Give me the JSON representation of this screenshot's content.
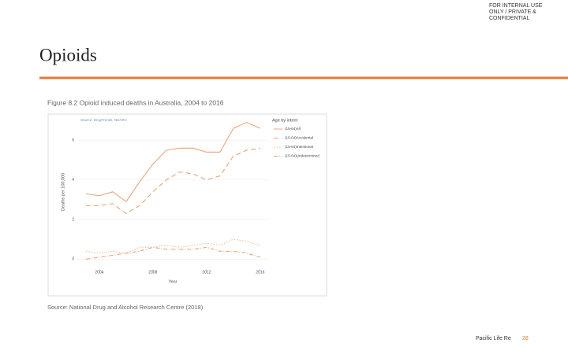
{
  "slide": {
    "notice": "FOR INTERNAL USE ONLY / PRIVATE & CONFIDENTIAL",
    "title": "Opioids",
    "caption": "Source: National Drug and Alcohol Research Centre (2018).",
    "footer": "Pacific Life Re",
    "page": "28"
  },
  "chart_data": {
    "type": "line",
    "title": "Figure 8.2 Opioid induced deaths in Australia, 2004 to 2016",
    "source": "Source: DrugTrends, NDARC",
    "x_label": "Year",
    "y_label": "Deaths per 100,000",
    "legend_title": "Age by intent",
    "legend": "right",
    "x": [
      2003,
      2004,
      2005,
      2006,
      2007,
      2008,
      2009,
      2010,
      2011,
      2012,
      2013,
      2014,
      2015,
      2016
    ],
    "series": [
      {
        "name": "(15-64)All",
        "color": "#e9a47c",
        "dash": "none",
        "values": [
          3.3,
          3.2,
          3.4,
          2.9,
          3.9,
          4.8,
          5.5,
          5.6,
          5.6,
          5.4,
          5.4,
          6.6,
          6.9,
          6.6
        ]
      },
      {
        "name": "(15-64)Accidental",
        "color": "#e9a47c",
        "dash": "6 4",
        "values": [
          2.7,
          2.7,
          2.8,
          2.3,
          2.7,
          3.4,
          4.0,
          4.4,
          4.3,
          4.0,
          4.2,
          5.2,
          5.5,
          5.6
        ]
      },
      {
        "name": "(15-64)Intentional",
        "color": "#eebb9c",
        "dash": "1.5 2",
        "values": [
          0.4,
          0.3,
          0.4,
          0.3,
          0.6,
          0.6,
          0.7,
          0.6,
          0.7,
          0.8,
          0.7,
          1.0,
          0.9,
          0.7
        ]
      },
      {
        "name": "(15-64)Undetermined",
        "color": "#e9a47c",
        "dash": "5 2 1 2",
        "values": [
          0.0,
          0.1,
          0.2,
          0.3,
          0.4,
          0.6,
          0.5,
          0.5,
          0.5,
          0.6,
          0.4,
          0.4,
          0.3,
          0.1
        ]
      }
    ],
    "xlim": [
      2002.3,
      2016.6
    ],
    "xticks": [
      2004,
      2008,
      2012,
      2016
    ],
    "ylim": [
      -0.5,
      7.2
    ],
    "yticks": [
      0,
      2,
      4,
      6
    ],
    "grid": true
  }
}
